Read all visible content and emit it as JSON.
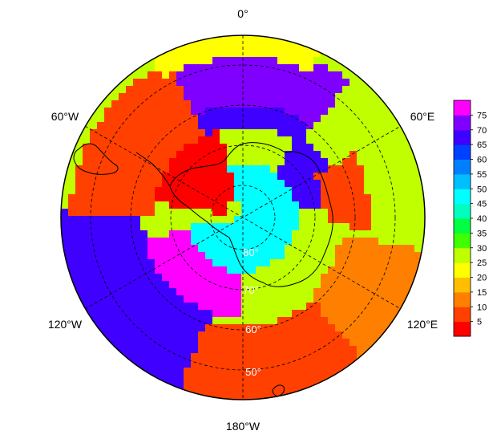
{
  "longitude_labels": {
    "top": "0°",
    "upper_left": "60°W",
    "upper_right": "60°E",
    "lower_left": "120°W",
    "lower_right": "120°E",
    "bottom": "180°W"
  },
  "latitude_labels": [
    "80°",
    "70°",
    "60°",
    "50°"
  ],
  "colorbar": {
    "ticks": [
      "75",
      "70",
      "65",
      "60",
      "55",
      "50",
      "45",
      "40",
      "35",
      "30",
      "25",
      "20",
      "15",
      "10",
      "5"
    ],
    "range": [
      0,
      80
    ],
    "colors": [
      "#ff0000",
      "#ff4000",
      "#ff8000",
      "#ffbf00",
      "#ffff00",
      "#bfff00",
      "#40ff00",
      "#00ff40",
      "#00ffbf",
      "#00ffff",
      "#00bfff",
      "#0080ff",
      "#0040ff",
      "#4000ff",
      "#8000ff",
      "#ff00ff"
    ]
  },
  "chart_data": {
    "type": "heatmap",
    "projection": "south polar stereographic",
    "value_range": [
      0,
      80
    ],
    "grid": true,
    "colorbar_placement": "right",
    "angular_labels": [
      "0°",
      "60°E",
      "120°E",
      "180°W",
      "120°W",
      "60°W"
    ],
    "radial_labels": [
      "80°",
      "70°",
      "60°",
      "50°"
    ]
  }
}
